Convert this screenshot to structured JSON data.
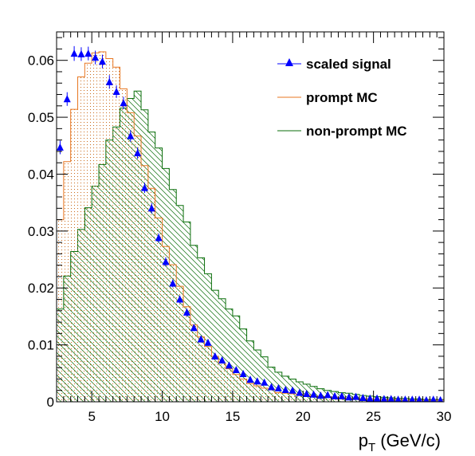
{
  "chart_data": {
    "type": "line",
    "title": "",
    "xlabel": "p_T (GeV/c)",
    "xlabel_main": "p",
    "xlabel_sub": "T",
    "xlabel_unit": "(GeV/c)",
    "ylabel": "",
    "xlim": [
      2.5,
      30
    ],
    "ylim": [
      0,
      0.065
    ],
    "x_ticks": [
      5,
      10,
      15,
      20,
      25,
      30
    ],
    "x_tick_labels": [
      "5",
      "10",
      "15",
      "20",
      "25",
      "30"
    ],
    "y_ticks": [
      0,
      0.01,
      0.02,
      0.03,
      0.04,
      0.05,
      0.06
    ],
    "y_tick_labels": [
      "0",
      "0.01",
      "0.02",
      "0.03",
      "0.04",
      "0.05",
      "0.06"
    ],
    "legend_position": "top-right",
    "bin_edges": [
      2.5,
      3,
      3.5,
      4,
      4.5,
      5,
      5.5,
      6,
      6.5,
      7,
      7.5,
      8,
      8.5,
      9,
      9.5,
      10,
      10.5,
      11,
      11.5,
      12,
      12.5,
      13,
      13.5,
      14,
      14.5,
      15,
      15.5,
      16,
      16.5,
      17,
      17.5,
      18,
      18.5,
      19,
      19.5,
      20,
      20.5,
      21,
      21.5,
      22,
      22.5,
      23,
      23.5,
      24,
      24.5,
      25,
      25.5,
      26,
      26.5,
      27,
      27.5,
      28,
      28.5,
      29,
      29.5,
      30
    ],
    "series": [
      {
        "name": "scaled signal",
        "kind": "points",
        "color": "#0000ff",
        "x": [
          2.75,
          3.25,
          3.75,
          4.25,
          4.75,
          5.25,
          5.75,
          6.25,
          6.75,
          7.25,
          7.75,
          8.25,
          8.75,
          9.25,
          9.75,
          10.25,
          10.75,
          11.25,
          11.75,
          12.25,
          12.75,
          13.25,
          13.75,
          14.25,
          14.75,
          15.25,
          15.75,
          16.25,
          16.75,
          17.25,
          17.75,
          18.25,
          18.75,
          19.25,
          19.75,
          20.25,
          20.75,
          21.25,
          21.75,
          22.25,
          22.75,
          23.25,
          23.75,
          24.25,
          24.75,
          25.25,
          25.75,
          26.25,
          26.75,
          27.25,
          27.75,
          28.25,
          28.75,
          29.25,
          29.75
        ],
        "y": [
          0.0447,
          0.0532,
          0.0612,
          0.0611,
          0.0612,
          0.0605,
          0.0598,
          0.0562,
          0.0545,
          0.0525,
          0.0467,
          0.0437,
          0.0376,
          0.034,
          0.0288,
          0.0246,
          0.0208,
          0.018,
          0.0157,
          0.013,
          0.011,
          0.0104,
          0.008,
          0.0073,
          0.0064,
          0.0056,
          0.0049,
          0.0039,
          0.0036,
          0.0034,
          0.0026,
          0.0024,
          0.0021,
          0.002,
          0.0016,
          0.0014,
          0.0013,
          0.0011,
          0.0012,
          0.001,
          0.001,
          0.0008,
          0.0009,
          0.0007,
          0.0006,
          0.0006,
          0.0005,
          0.0005,
          0.0004,
          0.0004,
          0.0004,
          0.0004,
          0.0003,
          0.0004,
          0.0003
        ],
        "yerr": [
          0.0012,
          0.0012,
          0.0013,
          0.0012,
          0.0012,
          0.0012,
          0.0012,
          0.0012,
          0.0011,
          0.0011,
          0.001,
          0.001,
          0.0009,
          0.0009,
          0.0008,
          0.0008,
          0.0007,
          0.0007,
          0.0007,
          0.0006,
          0.0006,
          0.0006,
          0.0005,
          0.0005,
          0.0005,
          0.0005,
          0.0004,
          0.0004,
          0.0004,
          0.0004,
          0.0003,
          0.0003,
          0.0003,
          0.0003,
          0.0003,
          0.0003,
          0.0003,
          0.0003,
          0.0003,
          0.0003,
          0.0003,
          0.0003,
          0.0003,
          0.0003,
          0.0003,
          0.0003,
          0.0003,
          0.0003,
          0.0003,
          0.0003,
          0.0003,
          0.0003,
          0.0003,
          0.0003,
          0.0003
        ]
      },
      {
        "name": "prompt MC",
        "kind": "histogram",
        "color": "#e87722",
        "fill": "dots",
        "y": [
          0.032,
          0.0422,
          0.0514,
          0.0571,
          0.0595,
          0.0613,
          0.0615,
          0.0603,
          0.0588,
          0.055,
          0.0508,
          0.0467,
          0.0415,
          0.0375,
          0.0323,
          0.0273,
          0.0241,
          0.0203,
          0.0167,
          0.0135,
          0.0114,
          0.0097,
          0.008,
          0.0068,
          0.0058,
          0.0048,
          0.004,
          0.0032,
          0.0028,
          0.0024,
          0.0022,
          0.0016,
          0.0015,
          0.0014,
          0.0013,
          0.0012,
          0.001,
          0.0009,
          0.0008,
          0.0008,
          0.0007,
          0.0006,
          0.0006,
          0.0005,
          0.0005,
          0.0004,
          0.0004,
          0.0004,
          0.0004,
          0.0003,
          0.0003,
          0.0003,
          0.0003,
          0.0003,
          0.0003
        ]
      },
      {
        "name": "non-prompt MC",
        "kind": "histogram",
        "color": "#0a6e0a",
        "fill": "hatch",
        "y": [
          0.0163,
          0.0221,
          0.0264,
          0.0303,
          0.0341,
          0.0379,
          0.0417,
          0.046,
          0.0483,
          0.0516,
          0.0533,
          0.0546,
          0.0513,
          0.0474,
          0.0446,
          0.041,
          0.0373,
          0.0345,
          0.0316,
          0.0275,
          0.0253,
          0.0225,
          0.0196,
          0.0181,
          0.0163,
          0.0151,
          0.0128,
          0.0107,
          0.0091,
          0.0079,
          0.0061,
          0.0052,
          0.0045,
          0.004,
          0.0035,
          0.0031,
          0.0027,
          0.0023,
          0.002,
          0.0018,
          0.0016,
          0.0015,
          0.0013,
          0.0011,
          0.001,
          0.0009,
          0.0008,
          0.0007,
          0.0006,
          0.0006,
          0.0005,
          0.0005,
          0.0004,
          0.0004,
          0.0004
        ]
      }
    ]
  }
}
